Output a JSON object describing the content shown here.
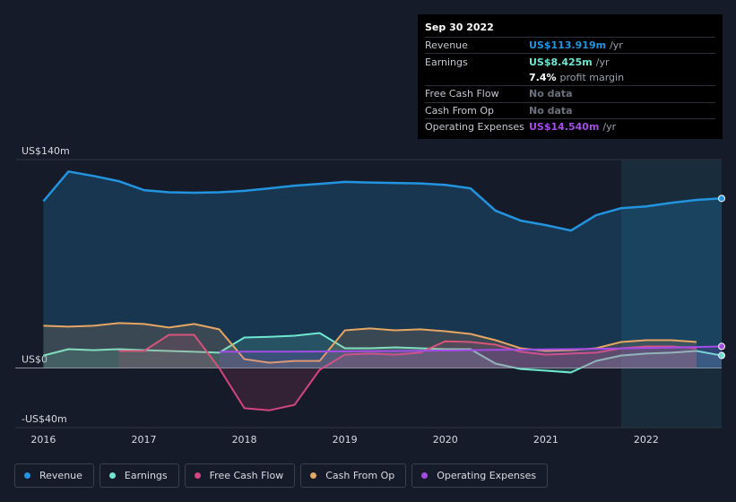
{
  "chart_data": {
    "type": "line",
    "x": [
      2016,
      2016.25,
      2016.5,
      2016.75,
      2017,
      2017.25,
      2017.5,
      2017.75,
      2018,
      2018.25,
      2018.5,
      2018.75,
      2019,
      2019.25,
      2019.5,
      2019.75,
      2020,
      2020.25,
      2020.5,
      2020.75,
      2021,
      2021.25,
      2021.5,
      2021.75,
      2022,
      2022.25,
      2022.5,
      2022.75
    ],
    "series": [
      {
        "name": "Revenue",
        "color": "#2394df",
        "values": [
          112,
          132,
          129,
          125.5,
          119.5,
          118,
          117.7,
          118,
          119,
          120.7,
          122.5,
          123.7,
          125,
          124.6,
          124.3,
          124,
          123,
          120.7,
          105.6,
          99,
          96,
          92.3,
          102.6,
          107.4,
          108.6,
          111,
          112.9,
          113.919
        ]
      },
      {
        "name": "Earnings",
        "color": "#6fe8d0",
        "values": [
          8.4,
          12.7,
          12,
          12.7,
          12,
          11.5,
          10.9,
          10.3,
          20.5,
          21,
          21.7,
          23.5,
          13.3,
          13.3,
          13.9,
          13.3,
          12.7,
          12.7,
          3,
          -0.6,
          -1.8,
          -3,
          4.8,
          8.4,
          9.7,
          10.3,
          11.5,
          8.425
        ]
      },
      {
        "name": "Free Cash Flow",
        "color": "#d2457f",
        "values": [
          null,
          null,
          null,
          11.5,
          11.5,
          22.3,
          22.3,
          0,
          -27,
          -28.4,
          -24.7,
          -1.2,
          9,
          9.7,
          9,
          10.3,
          18,
          17.5,
          15.7,
          10.9,
          9,
          9.7,
          10.3,
          13.3,
          14.5,
          14.5,
          13.3,
          null
        ]
      },
      {
        "name": "Cash From Op",
        "color": "#e6a663",
        "values": [
          28.4,
          27.8,
          28.4,
          30.2,
          29.6,
          27.2,
          29.6,
          26,
          6,
          3.6,
          4.8,
          4.8,
          25.3,
          26.6,
          25.3,
          26,
          24.7,
          22.9,
          18.7,
          13.3,
          11.5,
          12,
          13.3,
          17.5,
          18.7,
          18.7,
          17.5,
          null
        ]
      },
      {
        "name": "Operating Expenses",
        "color": "#a44ce6",
        "values": [
          null,
          null,
          null,
          null,
          null,
          null,
          null,
          10.9,
          11,
          11,
          11,
          11.1,
          11.2,
          11.3,
          11.4,
          11.6,
          11.8,
          12,
          12.2,
          12.4,
          12.5,
          12.7,
          12.9,
          13.2,
          13.5,
          13.8,
          14.1,
          14.54
        ]
      }
    ],
    "xlim": [
      2015.72,
      2022.75
    ],
    "xticks": [
      2016,
      2017,
      2018,
      2019,
      2020,
      2021,
      2022
    ],
    "ylim": [
      -40,
      140
    ],
    "yticks": [
      {
        "value": 140,
        "label": "US$140m"
      },
      {
        "value": 0,
        "label": "US$0"
      },
      {
        "value": -40,
        "label": "-US$40m"
      }
    ]
  },
  "tooltip": {
    "date": "Sep 30 2022",
    "rows": [
      {
        "label": "Revenue",
        "value": "US$113.919m",
        "suffix": "/yr",
        "color": "#2394df"
      },
      {
        "label": "Earnings",
        "value": "US$8.425m",
        "suffix": "/yr",
        "color": "#6fe8d0"
      },
      {
        "value": "7.4%",
        "suffix": "profit margin",
        "color": "#ffffff"
      },
      {
        "label": "Free Cash Flow",
        "value": "No data",
        "color": "#6b717c"
      },
      {
        "label": "Cash From Op",
        "value": "No data",
        "color": "#6b717c"
      },
      {
        "label": "Operating Expenses",
        "value": "US$14.540m",
        "suffix": "/yr",
        "color": "#a44ce6"
      }
    ]
  }
}
